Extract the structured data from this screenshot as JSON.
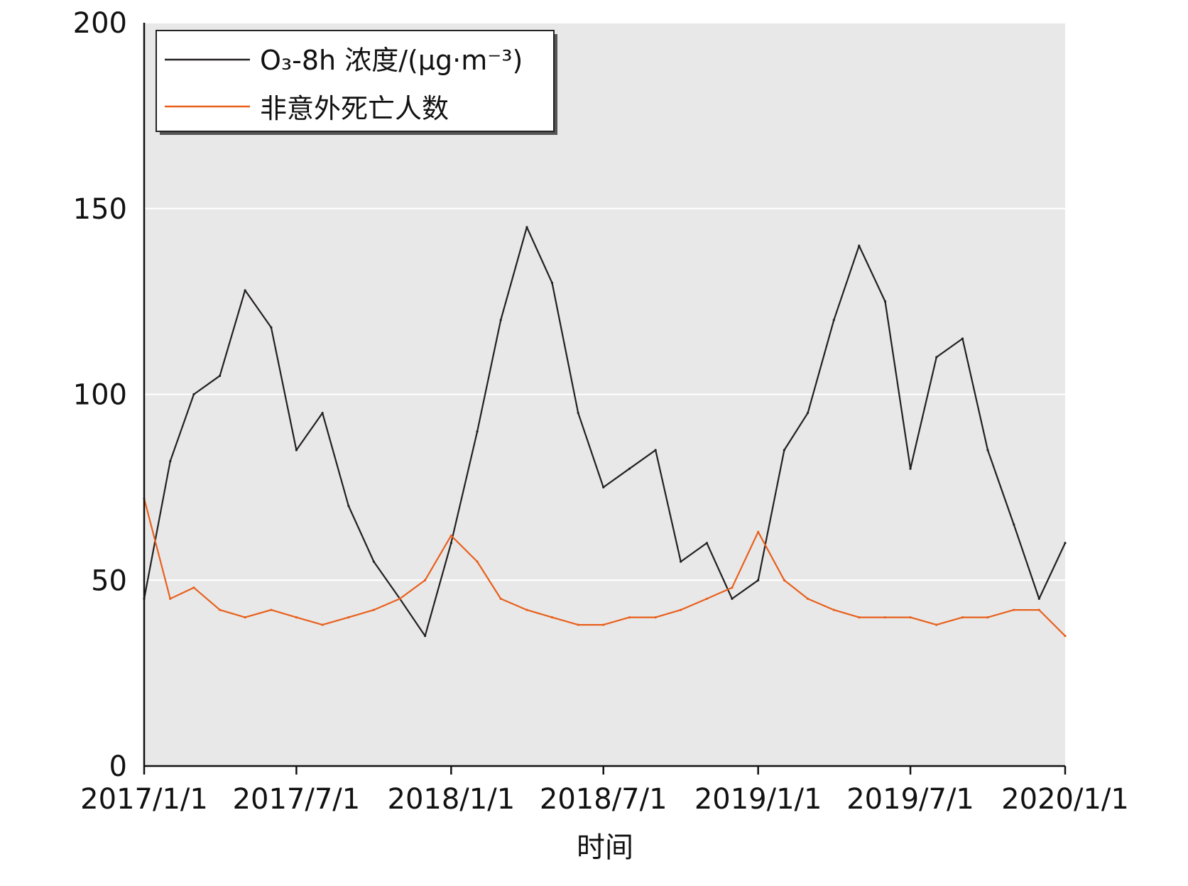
{
  "chart_data": {
    "type": "line",
    "title": "",
    "xlabel": "时间",
    "ylabel": "",
    "ylim": [
      0,
      200
    ],
    "yticks": [
      "0",
      "50",
      "100",
      "150",
      "200"
    ],
    "xlim": [
      "2017/1/1",
      "2020/1/1"
    ],
    "xticks": [
      "2017/1/1",
      "2017/7/1",
      "2018/1/1",
      "2018/7/1",
      "2019/1/1",
      "2019/7/1",
      "2020/1/1"
    ],
    "grid": true,
    "legend_position": "top-left",
    "x": [
      "2017/1/1",
      "2017/2/1",
      "2017/3/1",
      "2017/4/1",
      "2017/5/1",
      "2017/6/1",
      "2017/7/1",
      "2017/8/1",
      "2017/9/1",
      "2017/10/1",
      "2017/11/1",
      "2017/12/1",
      "2018/1/1",
      "2018/2/1",
      "2018/3/1",
      "2018/4/1",
      "2018/5/1",
      "2018/6/1",
      "2018/7/1",
      "2018/8/1",
      "2018/9/1",
      "2018/10/1",
      "2018/11/1",
      "2018/12/1",
      "2019/1/1",
      "2019/2/1",
      "2019/3/1",
      "2019/4/1",
      "2019/5/1",
      "2019/6/1",
      "2019/7/1",
      "2019/8/1",
      "2019/9/1",
      "2019/10/1",
      "2019/11/1",
      "2019/12/1",
      "2020/1/1"
    ],
    "series": [
      {
        "name": "O₃-8h 浓度/(μg·m⁻³)",
        "color": "#231f20",
        "values": [
          45,
          82,
          100,
          105,
          128,
          118,
          85,
          95,
          70,
          55,
          45,
          35,
          60,
          90,
          120,
          145,
          130,
          95,
          75,
          80,
          85,
          55,
          60,
          45,
          50,
          85,
          95,
          120,
          140,
          125,
          80,
          110,
          115,
          85,
          65,
          45,
          60
        ]
      },
      {
        "name": "非意外死亡人数",
        "color": "#e8601c",
        "values": [
          72,
          45,
          48,
          42,
          40,
          42,
          40,
          38,
          40,
          42,
          45,
          50,
          62,
          55,
          45,
          42,
          40,
          38,
          38,
          40,
          40,
          42,
          45,
          48,
          63,
          50,
          45,
          42,
          40,
          40,
          40,
          38,
          40,
          40,
          42,
          42,
          35
        ]
      }
    ]
  }
}
